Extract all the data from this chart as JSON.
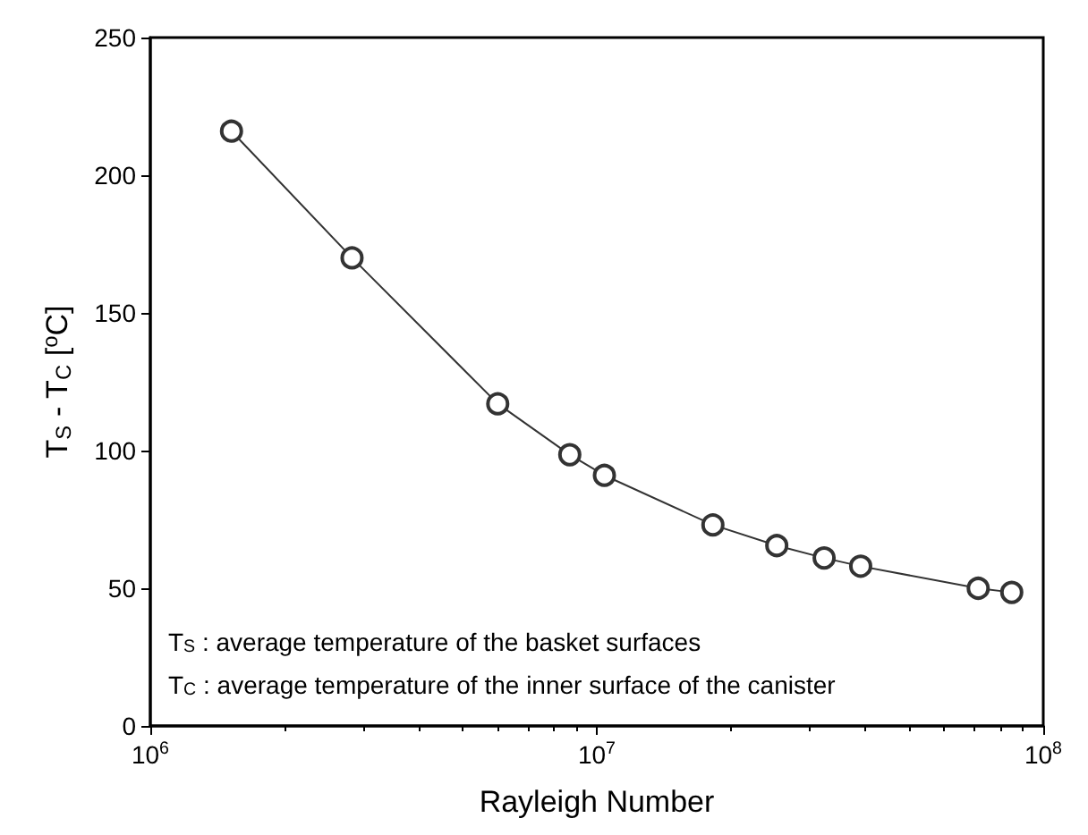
{
  "chart_data": {
    "type": "line",
    "xlabel": "Rayleigh Number",
    "ylabel": "T$_{S}$ - T$_{C}$ [$^{o}$C]",
    "x": [
      1520000,
      2830000,
      6000000,
      8700000,
      10400000,
      18200000,
      25300000,
      32300000,
      39000000,
      71500000,
      85000000
    ],
    "series": [
      {
        "color": "#333333",
        "values": [
          216,
          170,
          117,
          98.5,
          91,
          73,
          65.5,
          61,
          58,
          50,
          48.5
        ]
      }
    ],
    "log": "x",
    "xlim": [
      1000000,
      100000000
    ],
    "xticks": [
      {
        "value": 1000000,
        "label": "10$^{6}$"
      },
      {
        "value": 10000000,
        "label": "10$^{7}$"
      },
      {
        "value": 100000000,
        "label": "10$^{8}$"
      }
    ],
    "ylim": [
      0,
      250
    ],
    "yticks": [
      0,
      50,
      100,
      150,
      200,
      250
    ],
    "marker": "circle",
    "line_style": "solid",
    "grid": false,
    "annotations": [
      "T$_{S}$ : average temperature of the basket surfaces",
      "T$_{C}$ : average temperature of the inner surface of the canister"
    ]
  }
}
